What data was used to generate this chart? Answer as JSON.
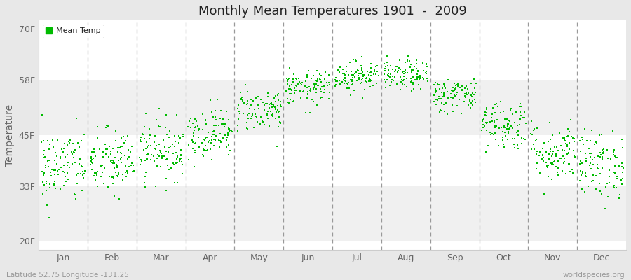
{
  "title": "Monthly Mean Temperatures 1901  -  2009",
  "ylabel": "Temperature",
  "yticks": [
    20,
    33,
    45,
    58,
    70
  ],
  "ytick_labels": [
    "20F",
    "33F",
    "45F",
    "58F",
    "70F"
  ],
  "ylim": [
    18,
    72
  ],
  "months": [
    "Jan",
    "Feb",
    "Mar",
    "Apr",
    "May",
    "Jun",
    "Jul",
    "Aug",
    "Sep",
    "Oct",
    "Nov",
    "Dec"
  ],
  "xlim": [
    0,
    12
  ],
  "dot_color": "#00bb00",
  "plot_bg": "#ffffff",
  "fig_bg": "#e8e8e8",
  "band_colors": [
    "#f0f0f0",
    "#ffffff",
    "#f0f0f0",
    "#ffffff",
    "#f0f0f0"
  ],
  "legend_label": "Mean Temp",
  "bottom_left": "Latitude 52.75 Longitude -131.25",
  "bottom_right": "worldspecies.org",
  "n_years": 109,
  "mean_temps_F": [
    37.5,
    38.5,
    41.5,
    45.5,
    51,
    56,
    59,
    59,
    54.5,
    47.5,
    41,
    38
  ],
  "std_temps_F": [
    4.5,
    4.0,
    3.5,
    3.0,
    2.5,
    2.0,
    1.8,
    1.8,
    2.0,
    3.0,
    3.5,
    4.0
  ],
  "seed": 42,
  "dot_size": 4
}
